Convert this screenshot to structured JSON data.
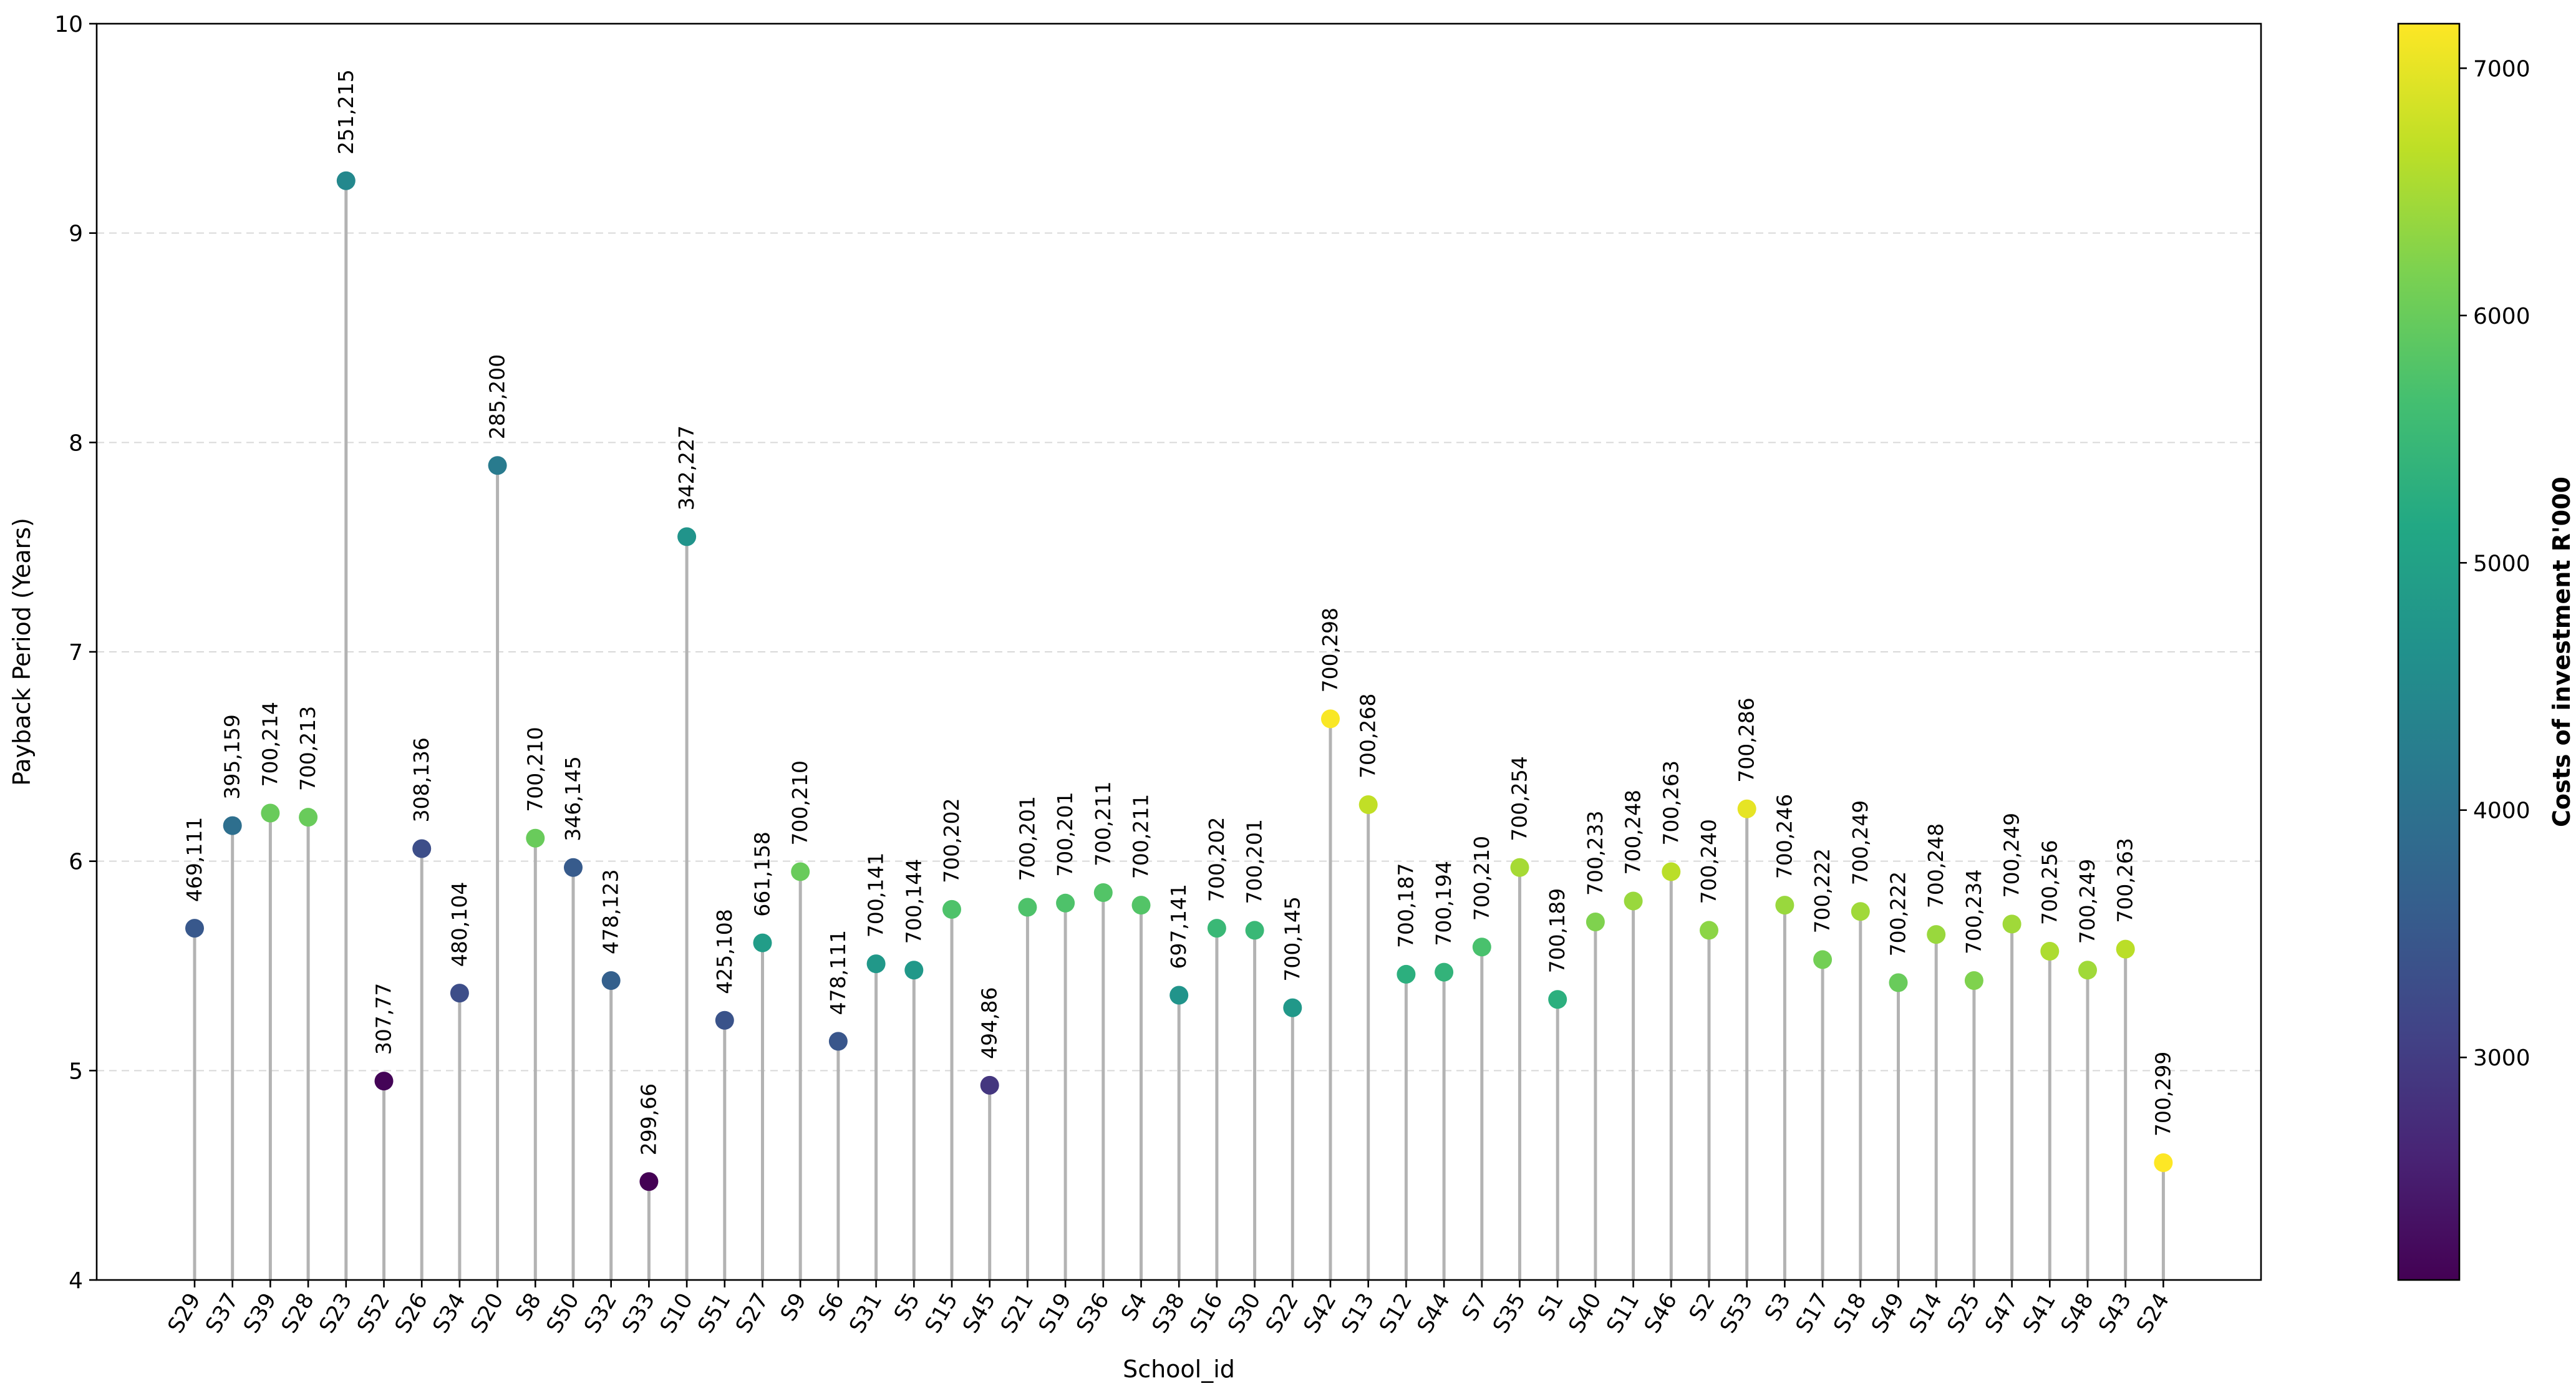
{
  "chart_data": {
    "type": "lollipop",
    "xlabel": "School_id",
    "ylabel": "Payback Period (Years)",
    "ylim": [
      4,
      10
    ],
    "yticks": [
      4,
      5,
      6,
      7,
      8,
      9,
      10
    ],
    "grid": "y-dashed",
    "colorbar": {
      "label": "Costs of investment R'000",
      "range": [
        2100,
        7180
      ],
      "ticks": [
        3000,
        4000,
        5000,
        6000,
        7000
      ],
      "colormap": "viridis"
    },
    "points": [
      {
        "school": "S29",
        "payback": 5.68,
        "label": "469,111",
        "cost": 3500
      },
      {
        "school": "S37",
        "payback": 6.17,
        "label": "395,159",
        "cost": 3950
      },
      {
        "school": "S39",
        "payback": 6.23,
        "label": "700,214",
        "cost": 6000
      },
      {
        "school": "S28",
        "payback": 6.21,
        "label": "700,213",
        "cost": 6000
      },
      {
        "school": "S23",
        "payback": 9.25,
        "label": "251,215",
        "cost": 4450
      },
      {
        "school": "S52",
        "payback": 4.95,
        "label": "307,77",
        "cost": 2150
      },
      {
        "school": "S26",
        "payback": 6.06,
        "label": "308,136",
        "cost": 3300
      },
      {
        "school": "S34",
        "payback": 5.37,
        "label": "480,104",
        "cost": 3300
      },
      {
        "school": "S20",
        "payback": 7.89,
        "label": "285,200",
        "cost": 4200
      },
      {
        "school": "S8",
        "payback": 6.11,
        "label": "700,210",
        "cost": 6000
      },
      {
        "school": "S50",
        "payback": 5.97,
        "label": "346,145",
        "cost": 3550
      },
      {
        "school": "S32",
        "payback": 5.43,
        "label": "478,123",
        "cost": 3650
      },
      {
        "school": "S33",
        "payback": 4.47,
        "label": "299,66",
        "cost": 2100
      },
      {
        "school": "S10",
        "payback": 7.55,
        "label": "342,227",
        "cost": 4700
      },
      {
        "school": "S51",
        "payback": 5.24,
        "label": "425,108",
        "cost": 3400
      },
      {
        "school": "S27",
        "payback": 5.61,
        "label": "661,158",
        "cost": 4900
      },
      {
        "school": "S9",
        "payback": 5.95,
        "label": "700,210",
        "cost": 6000
      },
      {
        "school": "S6",
        "payback": 5.14,
        "label": "478,111",
        "cost": 3450
      },
      {
        "school": "S31",
        "payback": 5.51,
        "label": "700,141",
        "cost": 4800
      },
      {
        "school": "S5",
        "payback": 5.48,
        "label": "700,144",
        "cost": 4800
      },
      {
        "school": "S15",
        "payback": 5.77,
        "label": "700,202",
        "cost": 5750
      },
      {
        "school": "S45",
        "payback": 4.93,
        "label": "494,86",
        "cost": 2900
      },
      {
        "school": "S21",
        "payback": 5.78,
        "label": "700,201",
        "cost": 5750
      },
      {
        "school": "S19",
        "payback": 5.8,
        "label": "700,201",
        "cost": 5750
      },
      {
        "school": "S36",
        "payback": 5.85,
        "label": "700,211",
        "cost": 5800
      },
      {
        "school": "S4",
        "payback": 5.79,
        "label": "700,211",
        "cost": 5800
      },
      {
        "school": "S38",
        "payback": 5.36,
        "label": "697,141",
        "cost": 4700
      },
      {
        "school": "S16",
        "payback": 5.68,
        "label": "700,202",
        "cost": 5500
      },
      {
        "school": "S30",
        "payback": 5.67,
        "label": "700,201",
        "cost": 5500
      },
      {
        "school": "S22",
        "payback": 5.3,
        "label": "700,145",
        "cost": 4800
      },
      {
        "school": "S42",
        "payback": 6.68,
        "label": "700,298",
        "cost": 7150
      },
      {
        "school": "S13",
        "payback": 6.27,
        "label": "700,268",
        "cost": 6700
      },
      {
        "school": "S12",
        "payback": 5.46,
        "label": "700,187",
        "cost": 5300
      },
      {
        "school": "S44",
        "payback": 5.47,
        "label": "700,194",
        "cost": 5400
      },
      {
        "school": "S7",
        "payback": 5.59,
        "label": "700,210",
        "cost": 5700
      },
      {
        "school": "S35",
        "payback": 5.97,
        "label": "700,254",
        "cost": 6500
      },
      {
        "school": "S1",
        "payback": 5.34,
        "label": "700,189",
        "cost": 5300
      },
      {
        "school": "S40",
        "payback": 5.71,
        "label": "700,233",
        "cost": 6200
      },
      {
        "school": "S11",
        "payback": 5.81,
        "label": "700,248",
        "cost": 6400
      },
      {
        "school": "S46",
        "payback": 5.95,
        "label": "700,263",
        "cost": 6650
      },
      {
        "school": "S2",
        "payback": 5.67,
        "label": "700,240",
        "cost": 6300
      },
      {
        "school": "S53",
        "payback": 6.25,
        "label": "700,286",
        "cost": 7000
      },
      {
        "school": "S3",
        "payback": 5.79,
        "label": "700,246",
        "cost": 6400
      },
      {
        "school": "S17",
        "payback": 5.53,
        "label": "700,222",
        "cost": 6100
      },
      {
        "school": "S18",
        "payback": 5.76,
        "label": "700,249",
        "cost": 6450
      },
      {
        "school": "S49",
        "payback": 5.42,
        "label": "700,222",
        "cost": 6000
      },
      {
        "school": "S14",
        "payback": 5.65,
        "label": "700,248",
        "cost": 6400
      },
      {
        "school": "S25",
        "payback": 5.43,
        "label": "700,234",
        "cost": 6200
      },
      {
        "school": "S47",
        "payback": 5.7,
        "label": "700,249",
        "cost": 6450
      },
      {
        "school": "S41",
        "payback": 5.57,
        "label": "700,256",
        "cost": 6550
      },
      {
        "school": "S48",
        "payback": 5.48,
        "label": "700,249",
        "cost": 6450
      },
      {
        "school": "S43",
        "payback": 5.58,
        "label": "700,263",
        "cost": 6650
      },
      {
        "school": "S24",
        "payback": 4.56,
        "label": "700,299",
        "cost": 7180
      }
    ]
  }
}
